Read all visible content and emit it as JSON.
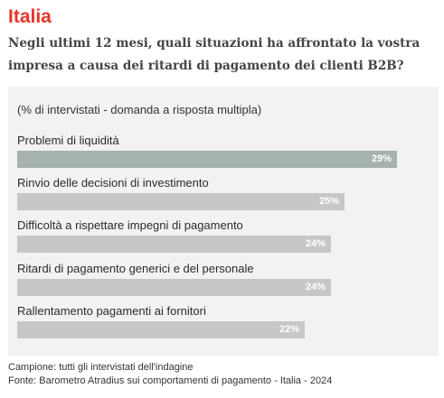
{
  "header": {
    "title": "Italia",
    "question": "Negli ultimi 12 mesi, quali situazioni ha affrontato la vostra impresa a causa dei ritardi di pagamento dei clienti B2B?"
  },
  "colors": {
    "title": "#e8352a",
    "bar_highlight": "#a5b2ad",
    "bar_default": "#c7c7c7"
  },
  "chart_data": {
    "type": "bar",
    "orientation": "horizontal",
    "subtitle": "(% di intervistati - domanda a risposta multipla)",
    "categories": [
      "Problemi di liquidità",
      "Rinvio delle decisioni di investimento",
      "Difficoltà a rispettare impegni di pagamento",
      "Ritardi di pagamento generici e del personale",
      "Rallentamento pagamenti ai fornitori"
    ],
    "values": [
      29,
      25,
      24,
      24,
      22
    ],
    "value_labels": [
      "29%",
      "25%",
      "24%",
      "24%",
      "22%"
    ],
    "highlight_index": 0,
    "xlim": [
      0,
      31.5
    ],
    "grid": false,
    "legend": "none"
  },
  "footer": {
    "sample": "Campione: tutti gli intervistati dell'indagine",
    "source": "Fonte: Barometro Atradius sui comportamenti di pagamento - Italia - 2024"
  }
}
